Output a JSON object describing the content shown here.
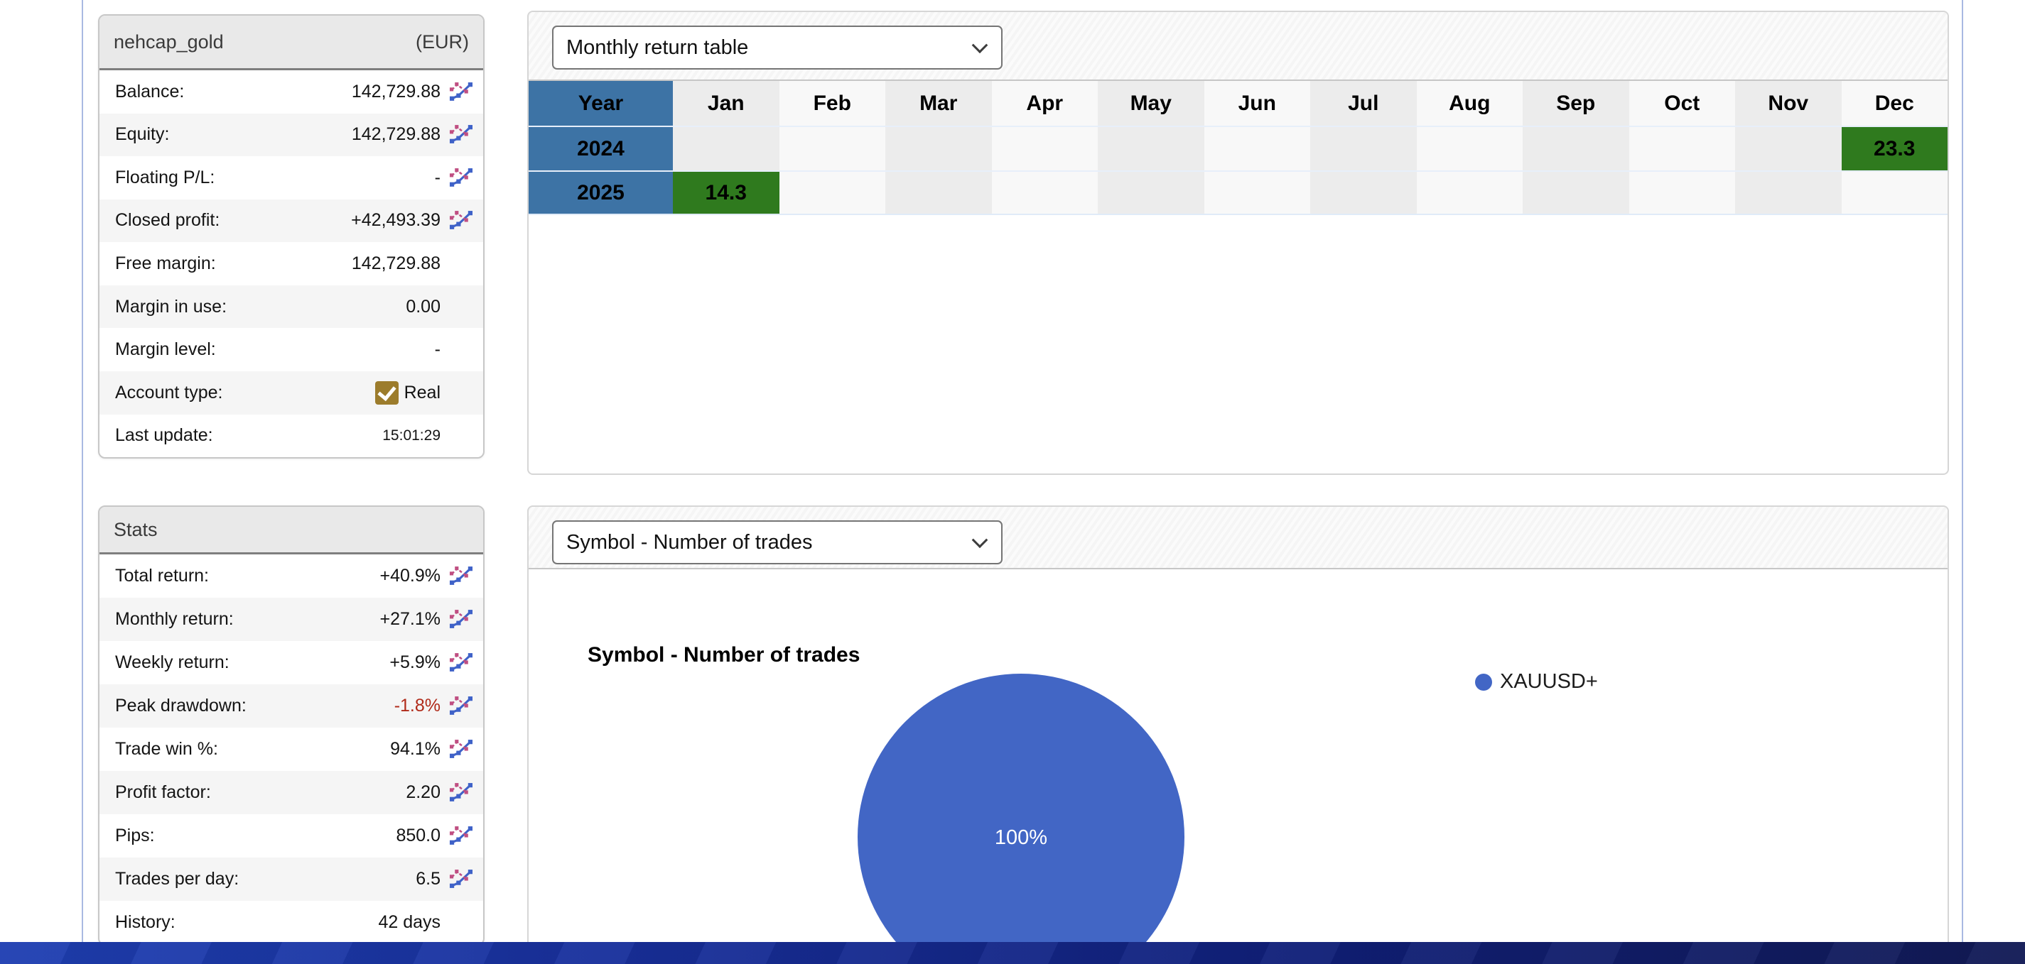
{
  "colors": {
    "pie_blue": "#4266c5",
    "year_cell_blue": "#3d73a5",
    "positive_cell_green": "#2f7a1e",
    "drawdown_red": "#b02a19",
    "checkbox_gold": "#9c7c2c",
    "bottom_bar_left": "#1f3fb2",
    "bottom_bar_right": "#121a55"
  },
  "account_panel": {
    "title": "nehcap_gold",
    "currency": "(EUR)",
    "rows": [
      {
        "label": "Balance:",
        "value": "142,729.88",
        "chart_icon": true
      },
      {
        "label": "Equity:",
        "value": "142,729.88",
        "chart_icon": true
      },
      {
        "label": "Floating P/L:",
        "value": "-",
        "chart_icon": true
      },
      {
        "label": "Closed profit:",
        "value": "+42,493.39",
        "chart_icon": true
      },
      {
        "label": "Free margin:",
        "value": "142,729.88",
        "chart_icon": false
      },
      {
        "label": "Margin in use:",
        "value": "0.00",
        "chart_icon": false
      },
      {
        "label": "Margin level:",
        "value": "-",
        "chart_icon": false
      },
      {
        "label": "Account type:",
        "value": "Real",
        "chart_icon": false,
        "checkbox": true
      },
      {
        "label": "Last update:",
        "value": "15:01:29",
        "chart_icon": false,
        "small": true
      }
    ]
  },
  "stats_panel": {
    "title": "Stats",
    "rows": [
      {
        "label": "Total return:",
        "value": "+40.9%",
        "chart_icon": true
      },
      {
        "label": "Monthly return:",
        "value": "+27.1%",
        "chart_icon": true
      },
      {
        "label": "Weekly return:",
        "value": "+5.9%",
        "chart_icon": true
      },
      {
        "label": "Peak drawdown:",
        "value": "-1.8%",
        "chart_icon": true,
        "negative": true
      },
      {
        "label": "Trade win %:",
        "value": "94.1%",
        "chart_icon": true
      },
      {
        "label": "Profit factor:",
        "value": "2.20",
        "chart_icon": true
      },
      {
        "label": "Pips:",
        "value": "850.0",
        "chart_icon": true
      },
      {
        "label": "Trades per day:",
        "value": "6.5",
        "chart_icon": true
      },
      {
        "label": "History:",
        "value": "42 days",
        "chart_icon": false
      }
    ]
  },
  "monthly_panel": {
    "selector_value": "Monthly return table"
  },
  "symbol_panel": {
    "selector_value": "Symbol - Number of trades"
  },
  "chart_data": [
    {
      "type": "pie",
      "title": "Symbol - Number of trades",
      "labels": [
        "XAUUSD+"
      ],
      "values": [
        100
      ],
      "center_label": "100%",
      "colors": [
        "#4266c5"
      ],
      "legend_position": "right"
    },
    {
      "type": "table",
      "columns": [
        "Year",
        "Jan",
        "Feb",
        "Mar",
        "Apr",
        "May",
        "Jun",
        "Jul",
        "Aug",
        "Sep",
        "Oct",
        "Nov",
        "Dec"
      ],
      "rows": [
        {
          "year": "2024",
          "values": [
            "",
            "",
            "",
            "",
            "",
            "",
            "",
            "",
            "",
            "",
            "",
            "23.3"
          ]
        },
        {
          "year": "2025",
          "values": [
            "14.3",
            "",
            "",
            "",
            "",
            "",
            "",
            "",
            "",
            "",
            "",
            ""
          ]
        }
      ]
    }
  ]
}
